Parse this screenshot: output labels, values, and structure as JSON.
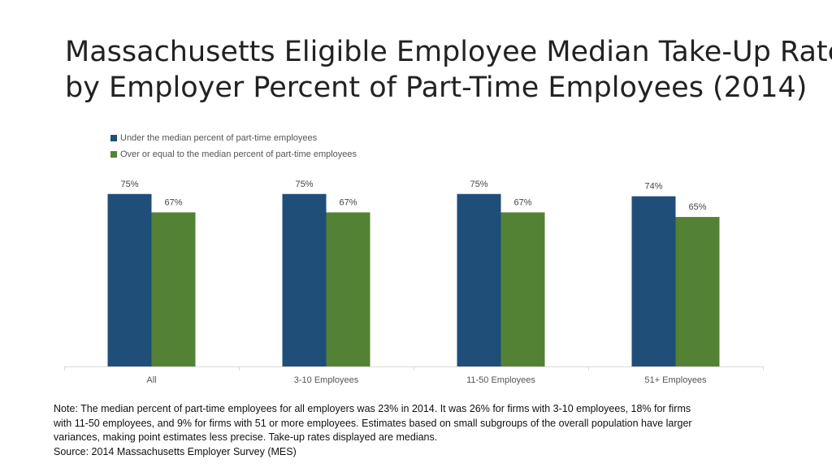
{
  "title_lines": [
    "Massachusetts Eligible Employee Median Take-Up Rates",
    "by Employer Percent of Part-Time Employees (2014)"
  ],
  "colors": {
    "series_1": "#1f4e79",
    "series_2": "#548235",
    "axis": "#d9d9d9"
  },
  "chart_data": {
    "type": "bar",
    "title": "",
    "xlabel": "",
    "ylabel": "",
    "ylim": [
      0,
      1
    ],
    "grid": false,
    "legend_position": "top-left",
    "categories": [
      "All",
      "3-10 Employees",
      "11-50 Employees",
      "51+ Employees"
    ],
    "series": [
      {
        "name": "Under the median percent of part-time employees",
        "values": [
          0.75,
          0.75,
          0.75,
          0.74
        ],
        "labels": [
          "75%",
          "75%",
          "75%",
          "74%"
        ]
      },
      {
        "name": "Over or equal to the median percent of part-time employees",
        "values": [
          0.67,
          0.67,
          0.67,
          0.65
        ],
        "labels": [
          "67%",
          "67%",
          "67%",
          "65%"
        ]
      }
    ]
  },
  "note_lines": [
    "Note: The median percent of part-time employees for all employers was 23% in 2014.  It was 26% for firms with 3-10 employees, 18% for firms",
    "with 11-50 employees, and 9% for firms with 51 or more employees.  Estimates based on small subgroups of the overall population have larger",
    "variances, making point estimates less precise.  Take-up rates displayed are medians.",
    "Source: 2014 Massachusetts Employer Survey (MES)"
  ]
}
